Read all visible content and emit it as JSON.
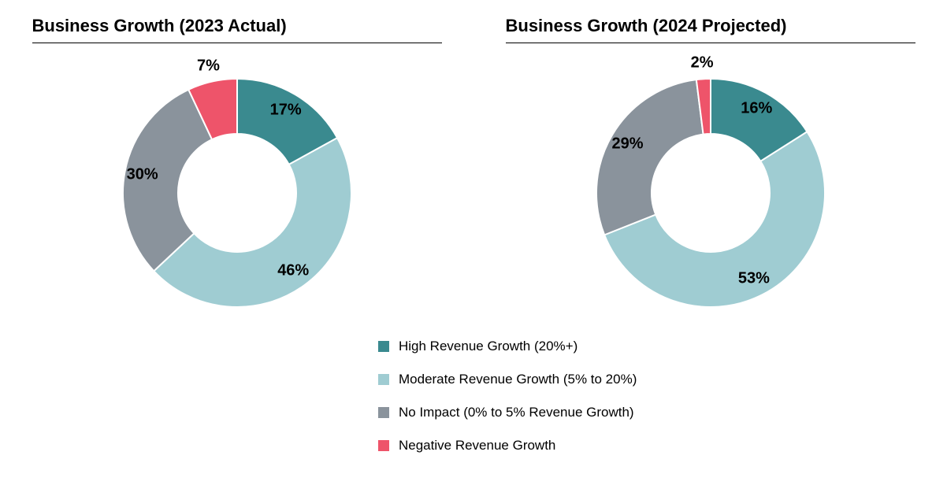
{
  "chart_left": {
    "title": "Business Growth (2023 Actual)",
    "type": "donut",
    "slices": [
      {
        "label": "17%",
        "value": 17,
        "color": "#3a8a8f",
        "label_color": "#000000"
      },
      {
        "label": "46%",
        "value": 46,
        "color": "#9fccd2",
        "label_color": "#000000"
      },
      {
        "label": "30%",
        "value": 30,
        "color": "#8a939c",
        "label_color": "#000000"
      },
      {
        "label": "7%",
        "value": 7,
        "color": "#ee546a",
        "label_color": "#000000"
      }
    ],
    "inner_radius": 75,
    "outer_radius": 145,
    "stroke_color": "#ffffff",
    "stroke_width": 2,
    "start_angle_deg": 0,
    "title_fontsize": 22,
    "label_fontsize": 20
  },
  "chart_right": {
    "title": "Business Growth (2024 Projected)",
    "type": "donut",
    "slices": [
      {
        "label": "16%",
        "value": 16,
        "color": "#3a8a8f",
        "label_color": "#000000"
      },
      {
        "label": "53%",
        "value": 53,
        "color": "#9fccd2",
        "label_color": "#000000"
      },
      {
        "label": "29%",
        "value": 29,
        "color": "#8a939c",
        "label_color": "#000000"
      },
      {
        "label": "2%",
        "value": 2,
        "color": "#ee546a",
        "label_color": "#000000"
      }
    ],
    "inner_radius": 75,
    "outer_radius": 145,
    "stroke_color": "#ffffff",
    "stroke_width": 2,
    "start_angle_deg": 0,
    "title_fontsize": 22,
    "label_fontsize": 20
  },
  "legend": {
    "items": [
      {
        "label": "High Revenue Growth (20%+)",
        "color": "#3a8a8f"
      },
      {
        "label": "Moderate Revenue Growth (5% to 20%)",
        "color": "#9fccd2"
      },
      {
        "label": "No Impact (0% to 5% Revenue Growth)",
        "color": "#8a939c"
      },
      {
        "label": "Negative Revenue Growth",
        "color": "#ee546a"
      }
    ],
    "swatch_size": 14,
    "label_fontsize": 17,
    "item_gap": 22
  },
  "background_color": "#ffffff"
}
